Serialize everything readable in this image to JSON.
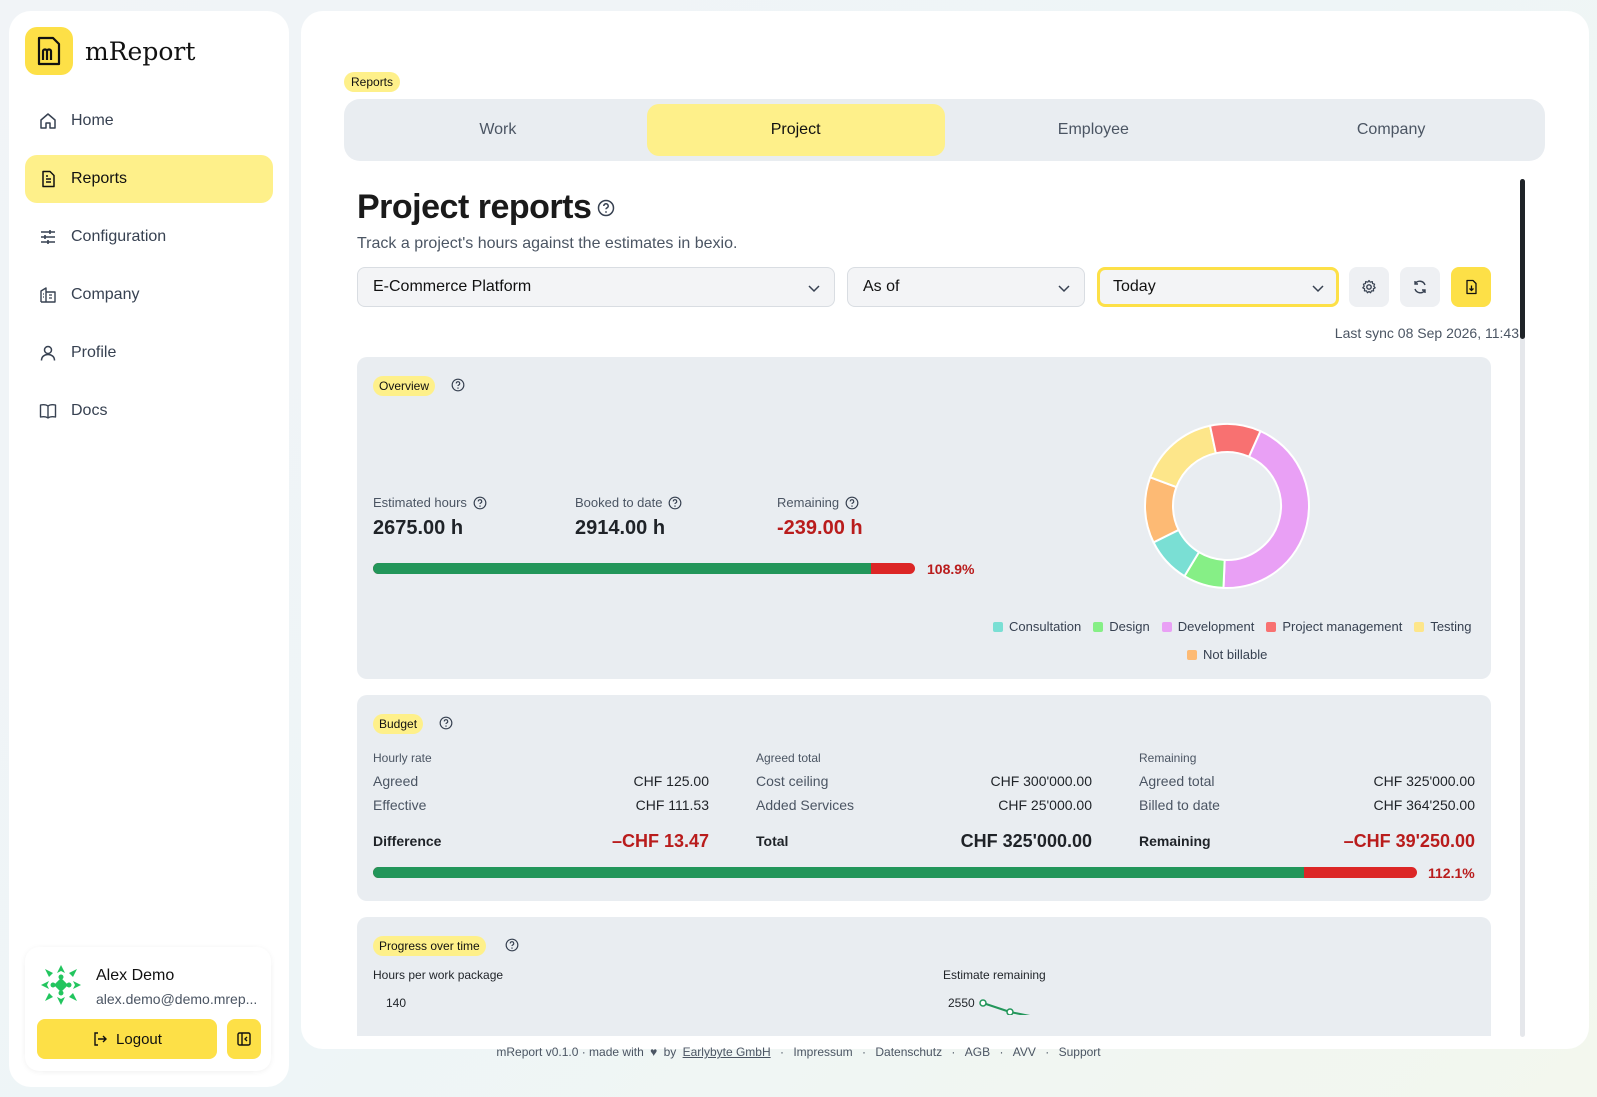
{
  "app": {
    "name": "mReport"
  },
  "sidebar": {
    "items": [
      {
        "label": "Home",
        "icon": "home-icon"
      },
      {
        "label": "Reports",
        "icon": "report-icon",
        "active": true
      },
      {
        "label": "Configuration",
        "icon": "sliders-icon"
      },
      {
        "label": "Company",
        "icon": "building-icon"
      },
      {
        "label": "Profile",
        "icon": "user-icon"
      },
      {
        "label": "Docs",
        "icon": "book-icon"
      }
    ],
    "user": {
      "name": "Alex Demo",
      "email": "alex.demo@demo.mrep..."
    },
    "logout_label": "Logout"
  },
  "breadcrumb": "Reports",
  "tabs": [
    {
      "label": "Work"
    },
    {
      "label": "Project",
      "active": true
    },
    {
      "label": "Employee"
    },
    {
      "label": "Company"
    }
  ],
  "page": {
    "title": "Project reports",
    "subtitle": "Track a project's hours against the estimates in bexio.",
    "project_select": "E-Commerce Platform",
    "mode_select": "As of",
    "date_select": "Today",
    "last_sync": "Last sync 08 Sep 2026, 11:43"
  },
  "overview": {
    "tag": "Overview",
    "estimated_label": "Estimated hours",
    "estimated_value": "2675.00 h",
    "booked_label": "Booked to date",
    "booked_value": "2914.00 h",
    "remaining_label": "Remaining",
    "remaining_value": "-239.00 h",
    "progress_pct": "108.9%",
    "progress_fraction": 0.918,
    "donut": {
      "slices": [
        {
          "name": "Development",
          "color": "#e9a0f5",
          "value": 0.44
        },
        {
          "name": "Design",
          "color": "#86ef86",
          "value": 0.08
        },
        {
          "name": "Consultation",
          "color": "#7adfd4",
          "value": 0.09
        },
        {
          "name": "Not billable",
          "color": "#fdba74",
          "value": 0.13
        },
        {
          "name": "Testing",
          "color": "#fde68a",
          "value": 0.16
        },
        {
          "name": "Project management",
          "color": "#f87171",
          "value": 0.1
        }
      ],
      "legend": [
        {
          "label": "Consultation",
          "color": "#7adfd4"
        },
        {
          "label": "Design",
          "color": "#86ef86"
        },
        {
          "label": "Development",
          "color": "#e9a0f5"
        },
        {
          "label": "Project management",
          "color": "#f87171"
        },
        {
          "label": "Testing",
          "color": "#fde68a"
        },
        {
          "label": "Not billable",
          "color": "#fdba74"
        }
      ]
    }
  },
  "budget": {
    "tag": "Budget",
    "hourly": {
      "header": "Hourly rate",
      "rows": [
        {
          "label": "Agreed",
          "value": "CHF 125.00"
        },
        {
          "label": "Effective",
          "value": "CHF 111.53"
        }
      ],
      "total_label": "Difference",
      "total_value": "–CHF 13.47"
    },
    "agreed": {
      "header": "Agreed total",
      "rows": [
        {
          "label": "Cost ceiling",
          "value": "CHF 300'000.00"
        },
        {
          "label": "Added Services",
          "value": "CHF 25'000.00"
        }
      ],
      "total_label": "Total",
      "total_value": "CHF 325'000.00"
    },
    "remaining": {
      "header": "Remaining",
      "rows": [
        {
          "label": "Agreed total",
          "value": "CHF 325'000.00"
        },
        {
          "label": "Billed to date",
          "value": "CHF 364'250.00"
        }
      ],
      "total_label": "Remaining",
      "total_value": "–CHF 39'250.00"
    },
    "progress_pct": "112.1%",
    "progress_fraction": 0.892
  },
  "progress": {
    "tag": "Progress over time",
    "left_title": "Hours per work package",
    "left_tick": "140",
    "right_title": "Estimate remaining",
    "right_tick": "2550"
  },
  "footer": {
    "version": "mReport v0.1.0 · made with",
    "by": "by",
    "company": "Earlybyte GmbH",
    "links": [
      "Impressum",
      "Datenschutz",
      "AGB",
      "AVV",
      "Support"
    ]
  },
  "colors": {
    "accent": "#fde047",
    "accent_light": "#fef08a",
    "positive": "#22965a",
    "negative": "#dc2626"
  }
}
